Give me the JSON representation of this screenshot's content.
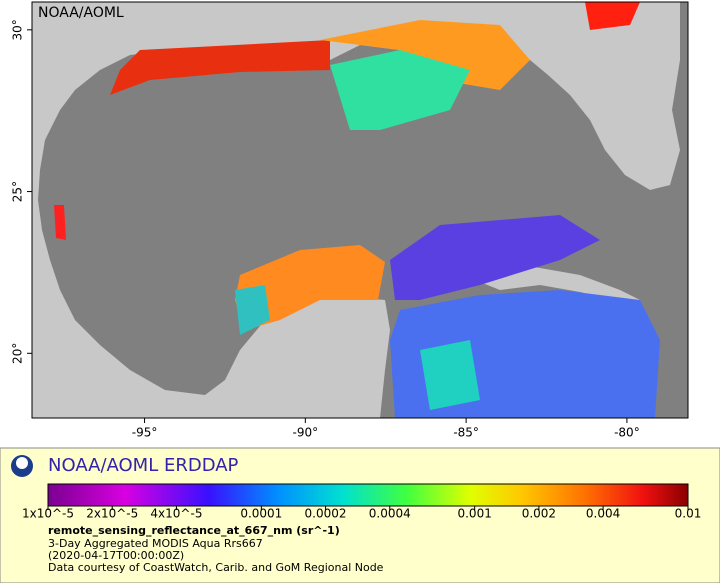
{
  "map": {
    "title": "NOAA/AOML",
    "xlim": [
      -98.5,
      -78.1
    ],
    "ylim": [
      18,
      30.86
    ],
    "xticks": [
      {
        "value": -95,
        "label": "-95°"
      },
      {
        "value": -90,
        "label": "-90°"
      },
      {
        "value": -85,
        "label": "-85°"
      },
      {
        "value": -80,
        "label": "-80°"
      }
    ],
    "yticks": [
      {
        "value": 20,
        "label": "20°"
      },
      {
        "value": 25,
        "label": "25°"
      },
      {
        "value": 30,
        "label": "30°"
      }
    ]
  },
  "legend": {
    "title": "NOAA/AOML ERDDAP",
    "colorbar": {
      "range": [
        1e-05,
        0.01
      ],
      "log_scale": true,
      "ticks": [
        {
          "value": 1e-05,
          "label": "1x10^-5"
        },
        {
          "value": 2e-05,
          "label": "2x10^-5"
        },
        {
          "value": 4e-05,
          "label": "4x10^-5"
        },
        0.0001,
        0.0002,
        0.0004,
        0.001,
        0.002,
        0.004,
        0.01
      ]
    },
    "variable": "remote_sensing_reflectance_at_667_nm (sr^-1)",
    "lines": [
      "3-Day Aggregated MODIS Aqua Rrs667",
      "(2020-04-17T00:00:00Z)",
      "Data courtesy of CoastWatch, Carib. and GoM Regional Node"
    ]
  }
}
